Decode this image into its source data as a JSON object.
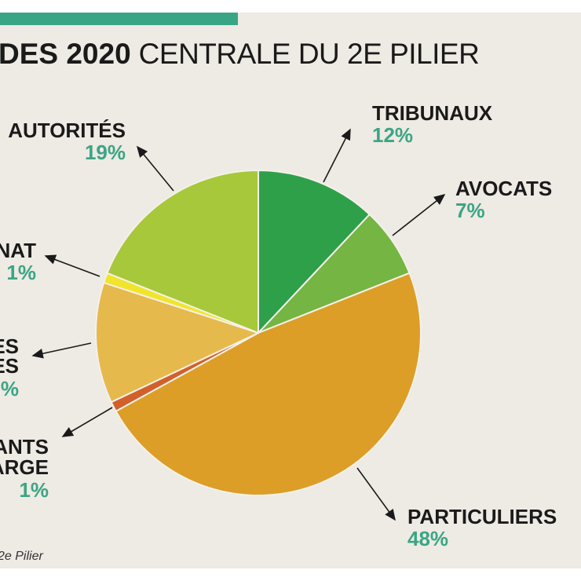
{
  "title": {
    "bold": "DES 2020",
    "light": "CENTRALE DU 2E PILIER"
  },
  "source": "2e Pilier",
  "colors": {
    "accent": "#3aa585",
    "background": "#eeeae4"
  },
  "chart_data": {
    "type": "pie",
    "start": "top",
    "direction": "clockwise",
    "slices": [
      {
        "label": "TRIBUNAUX",
        "value": 12,
        "value_label": "12%",
        "color": "#2fa04a"
      },
      {
        "label": "AVOCATS",
        "value": 7,
        "value_label": "7%",
        "color": "#74b543"
      },
      {
        "label": "PARTICULIERS",
        "value": 48,
        "value_label": "48%",
        "color": "#dc9e27"
      },
      {
        "label_fragments": [
          "ANTS",
          "ARGE"
        ],
        "value": 1,
        "value_label": "1%",
        "color": "#d2602a"
      },
      {
        "label_fragments": [
          "ES",
          "ES"
        ],
        "value": 12,
        "value_label": "%",
        "color": "#e6b94d"
      },
      {
        "label_fragments": [
          "NAT"
        ],
        "value": 1,
        "value_label": "1%",
        "color": "#f1e52b"
      },
      {
        "label": "AUTORITÉS",
        "value": 19,
        "value_label": "19%",
        "color": "#a7c83a"
      }
    ]
  }
}
